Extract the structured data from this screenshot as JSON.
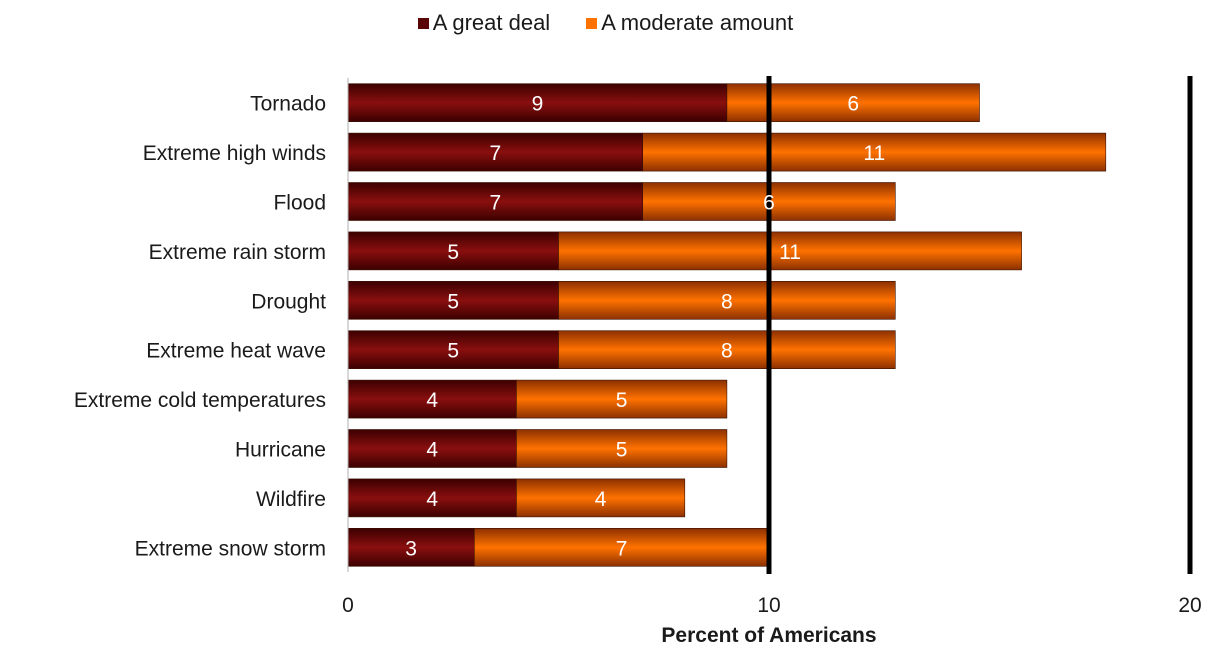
{
  "colors": {
    "great_deal_dark": "#3c0000",
    "great_deal_mid": "#8a0f0f",
    "moderate_dark": "#8c3000",
    "moderate_mid": "#ff7200",
    "axis_line": "#000000",
    "label_text": "#ffffff"
  },
  "chart_data": {
    "type": "bar",
    "orientation": "horizontal",
    "stacked": true,
    "categories": [
      "Tornado",
      "Extreme high winds",
      "Flood",
      "Extreme rain storm",
      "Drought",
      "Extreme heat wave ",
      "Extreme cold temperatures",
      "Hurricane",
      "Wildfire",
      "Extreme snow storm"
    ],
    "series": [
      {
        "name": "A great deal",
        "values": [
          9,
          7,
          7,
          5,
          5,
          5,
          4,
          4,
          4,
          3
        ]
      },
      {
        "name": "A moderate amount",
        "values": [
          6,
          11,
          6,
          11,
          8,
          8,
          5,
          5,
          4,
          7
        ]
      }
    ],
    "xlabel": "Percent of Americans",
    "ylabel": "",
    "xlim": [
      0,
      20
    ],
    "xticks": [
      "0",
      "10",
      "20"
    ],
    "reference_lines": [
      10,
      20
    ],
    "legend_position": "top",
    "grid": false
  }
}
